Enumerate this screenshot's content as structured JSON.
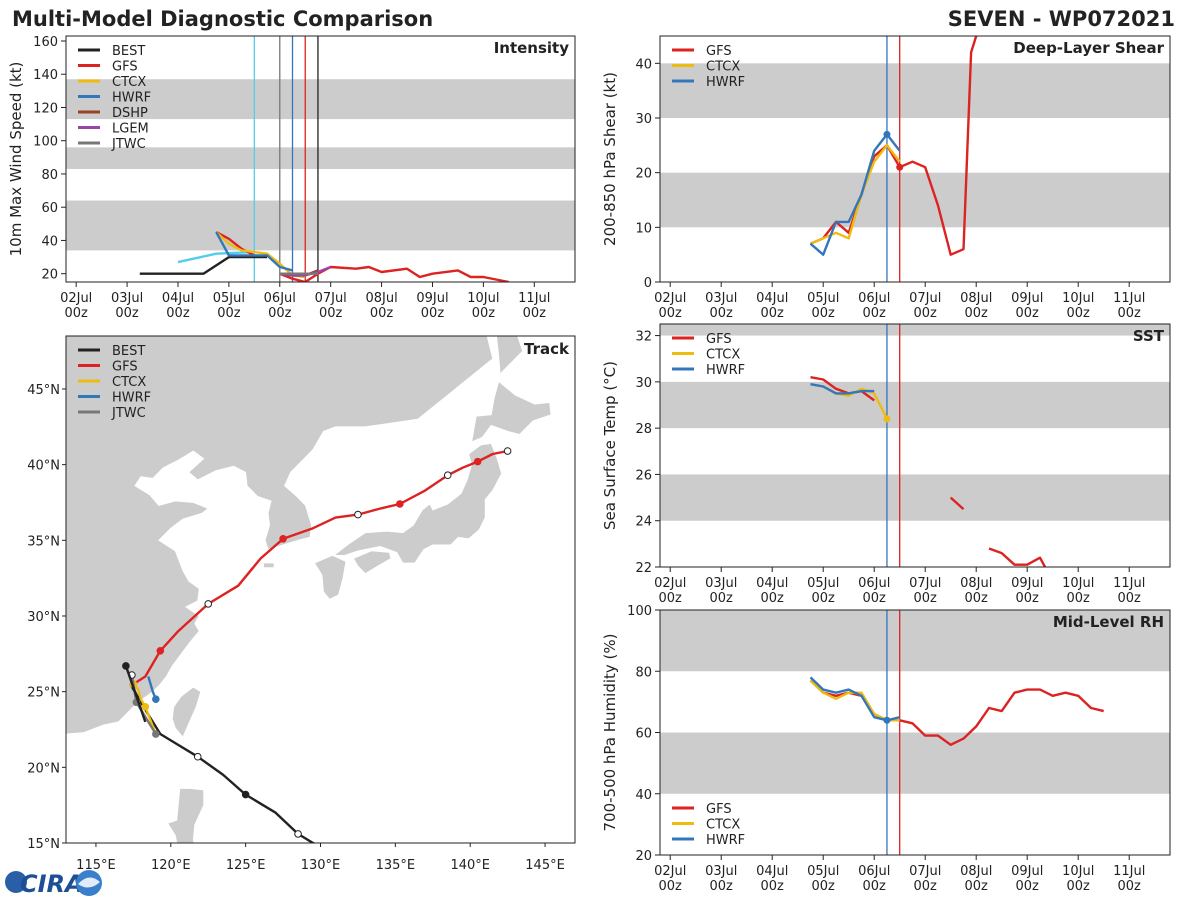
{
  "header": {
    "title": "Multi-Model Diagnostic Comparison",
    "storm": "SEVEN - WP072021"
  },
  "time_ticks": [
    {
      "day": "02Jul",
      "hour": "00z"
    },
    {
      "day": "03Jul",
      "hour": "00z"
    },
    {
      "day": "04Jul",
      "hour": "00z"
    },
    {
      "day": "05Jul",
      "hour": "00z"
    },
    {
      "day": "06Jul",
      "hour": "00z"
    },
    {
      "day": "07Jul",
      "hour": "00z"
    },
    {
      "day": "08Jul",
      "hour": "00z"
    },
    {
      "day": "09Jul",
      "hour": "00z"
    },
    {
      "day": "10Jul",
      "hour": "00z"
    },
    {
      "day": "11Jul",
      "hour": "00z"
    }
  ],
  "colors": {
    "BEST": "#222222",
    "GFS": "#dd2222",
    "CTCX": "#eebb11",
    "HWRF": "#3377bb",
    "DSHP": "#994422",
    "LGEM": "#9944aa",
    "JTWC": "#777777",
    "band": "#cccccc",
    "axis": "#222222",
    "land": "#cccccc",
    "ocean": "#ffffff",
    "coast": "#ffffff"
  },
  "logo": {
    "text": "CIRA"
  },
  "chart_data": [
    {
      "id": "intensity",
      "type": "line",
      "title": "Intensity",
      "ylabel": "10m Max Wind Speed (kt)",
      "xlabel": "",
      "xlim": [
        -0.2,
        9.8
      ],
      "ylim": [
        15,
        163
      ],
      "yticks": [
        20,
        40,
        60,
        80,
        100,
        120,
        140,
        160
      ],
      "bands": [
        [
          34,
          64
        ],
        [
          83,
          96
        ],
        [
          113,
          137
        ]
      ],
      "legend": [
        "BEST",
        "GFS",
        "CTCX",
        "HWRF",
        "DSHP",
        "LGEM",
        "JTWC"
      ],
      "legend_position": "top-left",
      "vlines": [
        {
          "x": 3.5,
          "color": "#55ccee"
        },
        {
          "x": 4.0,
          "color": "#777777"
        },
        {
          "x": 4.25,
          "color": "#3377bb"
        },
        {
          "x": 4.5,
          "color": "#dd2222"
        },
        {
          "x": 4.75,
          "color": "#222222"
        }
      ],
      "series": [
        {
          "name": "BEST",
          "x": [
            1.25,
            2.5,
            3.0,
            3.5,
            3.75
          ],
          "y": [
            20,
            20,
            30,
            30,
            30
          ]
        },
        {
          "name": "EARLY",
          "color": "#55ccee",
          "x": [
            2.0,
            2.75,
            3.5
          ],
          "y": [
            27,
            32,
            33
          ]
        },
        {
          "name": "GFS",
          "x": [
            4.0,
            4.25,
            4.5,
            4.75,
            5.0,
            5.5,
            5.75,
            6.0,
            6.5,
            6.75,
            7.0,
            7.5,
            7.75,
            8.0,
            8.5
          ],
          "y": [
            20,
            17,
            15,
            20,
            24,
            23,
            24,
            21,
            23,
            18,
            20,
            22,
            18,
            18,
            15
          ]
        },
        {
          "name": "GFS",
          "x": [
            2.75,
            3.0,
            3.25,
            3.5
          ],
          "y": [
            45,
            41,
            35,
            31
          ]
        },
        {
          "name": "CTCX",
          "x": [
            2.75,
            3.0,
            3.25,
            3.5,
            3.75,
            4.0,
            4.25,
            4.5
          ],
          "y": [
            45,
            38,
            34,
            33,
            32,
            26,
            19,
            18
          ]
        },
        {
          "name": "HWRF",
          "x": [
            2.75,
            3.0,
            3.25,
            3.5,
            3.75,
            4.0,
            4.25
          ],
          "y": [
            45,
            31,
            31,
            31,
            31,
            24,
            22
          ]
        },
        {
          "name": "DSHP",
          "x": [
            4.0,
            4.25,
            4.5,
            4.75
          ],
          "y": [
            20,
            19,
            19,
            22
          ]
        },
        {
          "name": "LGEM",
          "x": [
            4.0,
            4.25,
            4.5,
            4.75,
            5.0
          ],
          "y": [
            20,
            19,
            19,
            21,
            24
          ]
        },
        {
          "name": "JTWC",
          "x": [
            4.0,
            4.25,
            4.5,
            4.75
          ],
          "y": [
            20,
            20,
            20,
            20
          ]
        }
      ]
    },
    {
      "id": "shear",
      "type": "line",
      "title": "Deep-Layer Shear",
      "ylabel": "200-850 hPa Shear (kt)",
      "xlabel": "",
      "xlim": [
        -0.2,
        9.8
      ],
      "ylim": [
        0,
        45
      ],
      "yticks": [
        0,
        10,
        20,
        30,
        40
      ],
      "bands": [
        [
          10,
          20
        ],
        [
          30,
          40
        ]
      ],
      "legend": [
        "GFS",
        "CTCX",
        "HWRF"
      ],
      "legend_position": "top-left",
      "vlines": [
        {
          "x": 4.25,
          "color": "#3377bb"
        },
        {
          "x": 4.5,
          "color": "#dd2222"
        }
      ],
      "series": [
        {
          "name": "GFS",
          "x": [
            2.75,
            3.0,
            3.25,
            3.5,
            3.75,
            4.0,
            4.25,
            4.5,
            4.75,
            5.0,
            5.25,
            5.5,
            5.75,
            5.9,
            6.0,
            6.05
          ],
          "y": [
            7,
            8,
            11,
            9,
            16,
            23,
            25,
            21,
            22,
            21,
            14,
            5,
            6,
            42,
            45,
            46
          ]
        },
        {
          "name": "CTCX",
          "x": [
            2.75,
            3.0,
            3.25,
            3.5,
            3.75,
            4.0,
            4.25,
            4.5
          ],
          "y": [
            7,
            8,
            9,
            8,
            16,
            22,
            25,
            22
          ]
        },
        {
          "name": "HWRF",
          "x": [
            2.75,
            3.0,
            3.25,
            3.5,
            3.75,
            4.0,
            4.25,
            4.5
          ],
          "y": [
            7,
            5,
            11,
            11,
            16,
            24,
            27,
            24
          ]
        }
      ],
      "markers": [
        {
          "series": "HWRF",
          "x": 4.25,
          "y": 27
        },
        {
          "series": "GFS",
          "x": 4.5,
          "y": 21
        }
      ]
    },
    {
      "id": "sst",
      "type": "line",
      "title": "SST",
      "ylabel": "Sea Surface Temp (°C)",
      "xlabel": "",
      "xlim": [
        -0.2,
        9.8
      ],
      "ylim": [
        22,
        32.5
      ],
      "yticks": [
        22,
        24,
        26,
        28,
        30,
        32
      ],
      "bands": [
        [
          24,
          26
        ],
        [
          28,
          30
        ],
        [
          32,
          32.5
        ]
      ],
      "legend": [
        "GFS",
        "CTCX",
        "HWRF"
      ],
      "legend_position": "top-left",
      "vlines": [
        {
          "x": 4.25,
          "color": "#3377bb"
        },
        {
          "x": 4.5,
          "color": "#dd2222"
        }
      ],
      "series": [
        {
          "name": "GFS",
          "x": [
            2.75,
            3.0,
            3.25,
            3.5,
            3.75,
            4.0
          ],
          "y": [
            30.2,
            30.1,
            29.7,
            29.5,
            29.6,
            29.2
          ]
        },
        {
          "name": "GFS",
          "x": [
            5.5,
            5.75
          ],
          "y": [
            25.0,
            24.5
          ]
        },
        {
          "name": "GFS",
          "x": [
            6.25,
            6.5,
            6.75,
            7.0,
            7.25,
            7.35
          ],
          "y": [
            22.8,
            22.6,
            22.1,
            22.1,
            22.4,
            22.0
          ]
        },
        {
          "name": "CTCX",
          "x": [
            2.75,
            3.0,
            3.25,
            3.5,
            3.75,
            4.0,
            4.25
          ],
          "y": [
            29.9,
            29.8,
            29.5,
            29.4,
            29.7,
            29.5,
            28.4
          ]
        },
        {
          "name": "HWRF",
          "x": [
            2.75,
            3.0,
            3.25,
            3.5,
            3.75,
            4.0
          ],
          "y": [
            29.9,
            29.8,
            29.5,
            29.5,
            29.6,
            29.6
          ]
        }
      ],
      "markers": [
        {
          "series": "CTCX",
          "x": 4.25,
          "y": 28.4
        }
      ]
    },
    {
      "id": "rh",
      "type": "line",
      "title": "Mid-Level RH",
      "ylabel": "700-500 hPa Humidity (%)",
      "xlabel": "",
      "xlim": [
        -0.2,
        9.8
      ],
      "ylim": [
        20,
        100
      ],
      "yticks": [
        20,
        40,
        60,
        80,
        100
      ],
      "bands": [
        [
          40,
          60
        ],
        [
          80,
          100
        ]
      ],
      "legend": [
        "GFS",
        "CTCX",
        "HWRF"
      ],
      "legend_position": "bottom-left",
      "vlines": [
        {
          "x": 4.25,
          "color": "#3377bb"
        },
        {
          "x": 4.5,
          "color": "#dd2222"
        }
      ],
      "series": [
        {
          "name": "GFS",
          "x": [
            2.75,
            3.0,
            3.25,
            3.5,
            3.75,
            4.0,
            4.25,
            4.5,
            4.75,
            5.0,
            5.25,
            5.5,
            5.75,
            6.0,
            6.25,
            6.5,
            6.75,
            7.0,
            7.25,
            7.5,
            7.75,
            8.0,
            8.25,
            8.5
          ],
          "y": [
            77,
            73,
            72,
            73,
            72,
            66,
            64,
            64,
            63,
            59,
            59,
            56,
            58,
            62,
            68,
            67,
            73,
            74,
            74,
            72,
            73,
            72,
            68,
            67
          ]
        },
        {
          "name": "CTCX",
          "x": [
            2.75,
            3.0,
            3.25,
            3.5,
            3.75,
            4.0,
            4.25,
            4.5
          ],
          "y": [
            77,
            73,
            71,
            73,
            73,
            66,
            64,
            64
          ]
        },
        {
          "name": "HWRF",
          "x": [
            2.75,
            3.0,
            3.25,
            3.5,
            3.75,
            4.0,
            4.25,
            4.5
          ],
          "y": [
            78,
            74,
            73,
            74,
            72,
            65,
            64,
            65
          ]
        }
      ],
      "markers": [
        {
          "series": "HWRF",
          "x": 4.25,
          "y": 64
        }
      ]
    },
    {
      "id": "track",
      "type": "scatter",
      "title": "Track",
      "xlabel": "",
      "ylabel": "",
      "xlim": [
        113,
        147
      ],
      "ylim": [
        15,
        48.5
      ],
      "xticks": [
        115,
        120,
        125,
        130,
        135,
        140,
        145
      ],
      "xtick_labels": [
        "115°E",
        "120°E",
        "125°E",
        "130°E",
        "135°E",
        "140°E",
        "145°E"
      ],
      "yticks": [
        15,
        20,
        25,
        30,
        35,
        40,
        45
      ],
      "ytick_labels": [
        "15°N",
        "20°N",
        "25°N",
        "30°N",
        "35°N",
        "40°N",
        "45°N"
      ],
      "legend": [
        "BEST",
        "GFS",
        "CTCX",
        "HWRF",
        "JTWC"
      ],
      "legend_position": "top-left",
      "tracks": [
        {
          "name": "BEST",
          "lon": [
            130.5,
            129.5,
            128.5,
            127.0,
            125.0,
            123.5,
            121.8,
            120.3,
            119.3,
            118.3,
            117.3
          ],
          "lat": [
            14.5,
            15.0,
            15.6,
            17.0,
            18.2,
            19.5,
            20.7,
            21.6,
            22.2,
            23.8,
            25.5
          ],
          "filled": [
            false,
            false,
            false,
            false,
            true,
            false,
            false,
            false,
            false,
            false,
            false
          ],
          "marked": [
            false,
            false,
            true,
            false,
            true,
            false,
            true,
            false,
            false,
            false,
            false
          ]
        },
        {
          "name": "GFS",
          "lon": [
            117.5,
            118.3,
            119.3,
            120.5,
            122.5,
            124.5,
            126.0,
            127.5,
            129.5,
            131.0,
            132.5,
            134.0,
            135.3,
            137.0,
            138.5,
            139.5,
            140.5,
            141.5,
            142.5
          ],
          "lat": [
            25.5,
            26.0,
            27.7,
            29.0,
            30.8,
            32.0,
            33.8,
            35.1,
            35.8,
            36.5,
            36.7,
            37.1,
            37.4,
            38.3,
            39.3,
            39.8,
            40.2,
            40.7,
            40.9
          ],
          "filled": [
            true,
            false,
            true,
            false,
            false,
            false,
            false,
            true,
            false,
            false,
            false,
            false,
            true,
            false,
            false,
            false,
            true,
            false,
            false
          ],
          "marked": [
            true,
            false,
            true,
            false,
            true,
            false,
            false,
            true,
            false,
            false,
            true,
            false,
            true,
            false,
            true,
            false,
            true,
            false,
            true
          ]
        },
        {
          "name": "CTCX",
          "lon": [
            117.5,
            117.8,
            118.0,
            118.3,
            119.0
          ],
          "lat": [
            25.5,
            25.2,
            24.5,
            24.0,
            22.2
          ],
          "filled": [
            true,
            false,
            false,
            true,
            false
          ],
          "marked": [
            true,
            false,
            false,
            true,
            false
          ]
        },
        {
          "name": "HWRF",
          "lon": [
            118.5,
            118.8,
            119.0
          ],
          "lat": [
            26.0,
            25.0,
            24.5
          ],
          "filled": [
            false,
            false,
            true
          ],
          "marked": [
            false,
            false,
            true
          ]
        },
        {
          "name": "JTWC",
          "lon": [
            119.0,
            118.2,
            117.7,
            117.4
          ],
          "lat": [
            22.2,
            23.5,
            24.3,
            26.1
          ],
          "filled": [
            true,
            false,
            true,
            false
          ],
          "marked": [
            true,
            false,
            true,
            true
          ]
        },
        {
          "name": "BESTTAIL",
          "color": "#222222",
          "lon": [
            118.3,
            117.0
          ],
          "lat": [
            23.0,
            26.7
          ],
          "filled": [
            false,
            true
          ],
          "marked": [
            false,
            true
          ]
        }
      ]
    }
  ]
}
